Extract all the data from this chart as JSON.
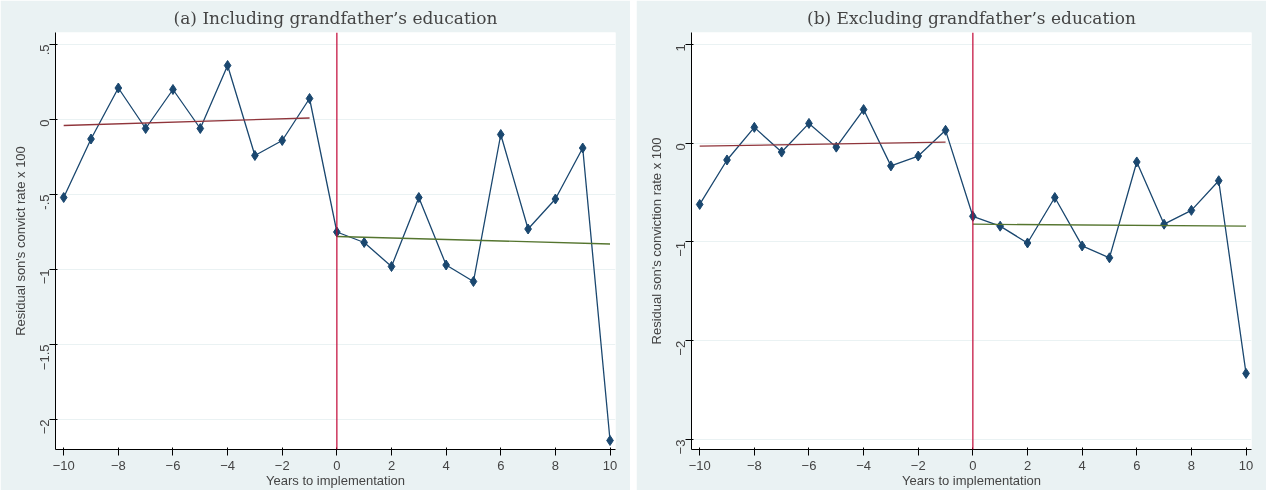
{
  "chart_data": [
    {
      "type": "line",
      "title": "(a) Including grandfather’s education",
      "xlabel": "Years to implementation",
      "ylabel": "Residual son's convict rate x 100",
      "x": [
        -10,
        -9,
        -8,
        -7,
        -6,
        -5,
        -4,
        -3,
        -2,
        -1,
        0,
        1,
        2,
        3,
        4,
        5,
        6,
        7,
        8,
        9,
        10
      ],
      "series": [
        {
          "color": "#1a476f",
          "marker": "diamond",
          "values": [
            -0.52,
            -0.13,
            0.21,
            -0.06,
            0.2,
            -0.06,
            0.36,
            -0.24,
            -0.14,
            0.14,
            -0.75,
            -0.82,
            -0.98,
            -0.52,
            -0.97,
            -1.08,
            -0.1,
            -0.73,
            -0.53,
            -0.19,
            -2.14
          ]
        },
        {
          "color": "#90353b",
          "marker": "none",
          "x": [
            -10,
            -1
          ],
          "values": [
            -0.04,
            0.01
          ]
        },
        {
          "color": "#55752f",
          "marker": "none",
          "x": [
            0,
            10
          ],
          "values": [
            -0.78,
            -0.83
          ]
        }
      ],
      "xlim": [
        -10.3,
        10.2
      ],
      "xticks": [
        -10,
        -8,
        -6,
        -4,
        -2,
        0,
        2,
        4,
        6,
        8,
        10
      ],
      "ylim": [
        -2.2,
        0.58
      ],
      "yticks": [
        {
          "value": 0.5,
          "label": ".5"
        },
        0,
        {
          "value": -0.5,
          "label": "-.5"
        },
        -1,
        -1.5,
        -2
      ],
      "ref_lines": [
        {
          "axis": "x",
          "value": 0,
          "color": "#c10534"
        }
      ],
      "grid": "y",
      "line_style": "solid"
    },
    {
      "type": "line",
      "title": "(b) Excluding grandfather’s education",
      "xlabel": "Years to implementation",
      "ylabel": "Residual son's conviction rate x 100",
      "x": [
        -10,
        -9,
        -8,
        -7,
        -6,
        -5,
        -4,
        -3,
        -2,
        -1,
        0,
        1,
        2,
        3,
        4,
        5,
        6,
        7,
        8,
        9,
        10
      ],
      "series": [
        {
          "color": "#1a476f",
          "marker": "diamond",
          "values": [
            -0.62,
            -0.17,
            0.16,
            -0.09,
            0.2,
            -0.04,
            0.34,
            -0.23,
            -0.13,
            0.13,
            -0.74,
            -0.84,
            -1.01,
            -0.55,
            -1.04,
            -1.16,
            -0.19,
            -0.82,
            -0.68,
            -0.38,
            -2.33
          ]
        },
        {
          "color": "#90353b",
          "marker": "none",
          "x": [
            -10,
            -1
          ],
          "values": [
            -0.03,
            0.01
          ]
        },
        {
          "color": "#55752f",
          "marker": "none",
          "x": [
            0,
            10
          ],
          "values": [
            -0.82,
            -0.84
          ]
        }
      ],
      "xlim": [
        -10.3,
        10.2
      ],
      "xticks": [
        -10,
        -8,
        -6,
        -4,
        -2,
        0,
        2,
        4,
        6,
        8,
        10
      ],
      "ylim": [
        -3.1,
        1.12
      ],
      "yticks": [
        1,
        0,
        -1,
        -2,
        -3
      ],
      "ref_lines": [
        {
          "axis": "x",
          "value": 0,
          "color": "#c10534"
        }
      ],
      "grid": "y",
      "line_style": "solid"
    }
  ]
}
